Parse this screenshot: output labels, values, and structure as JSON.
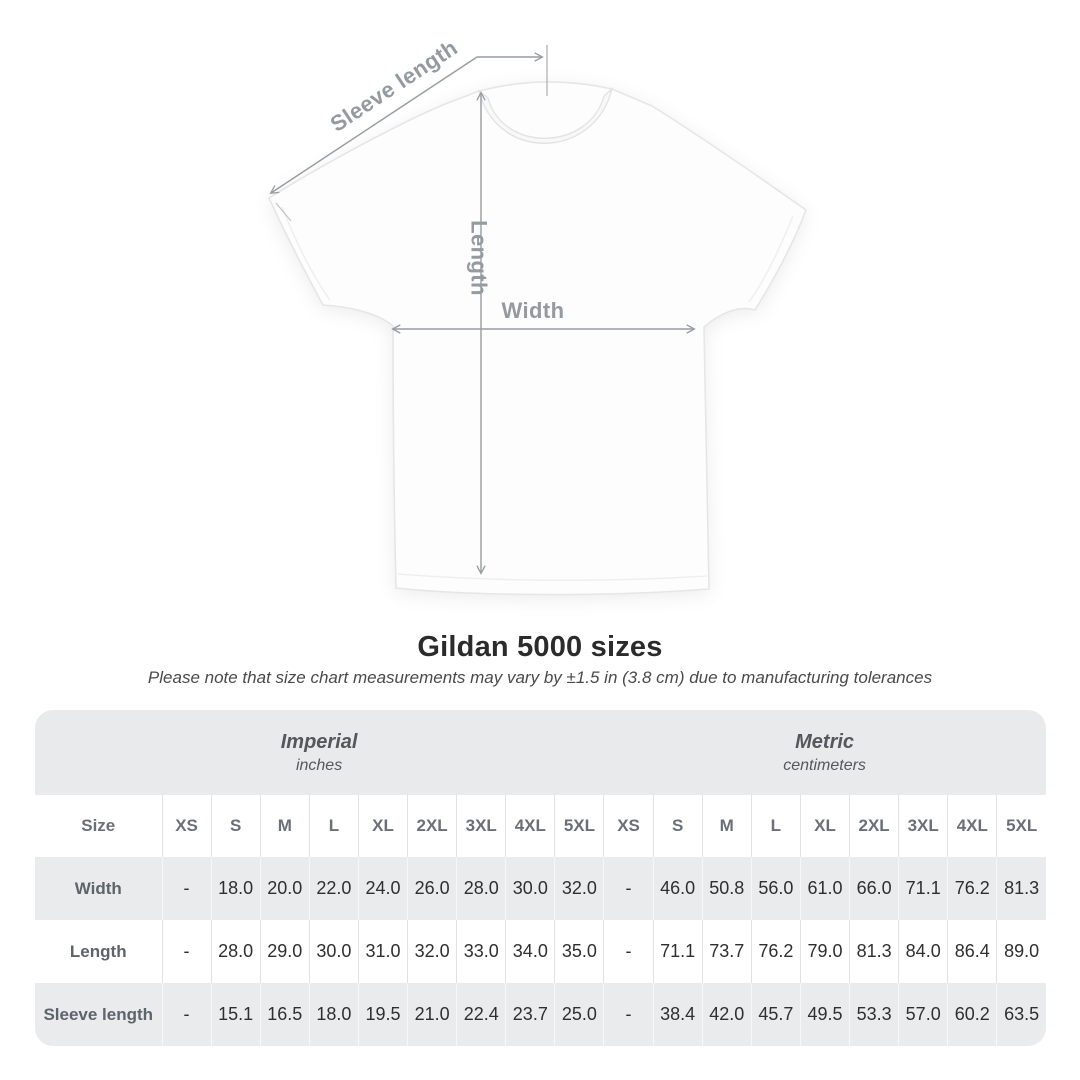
{
  "title": "Gildan 5000 sizes",
  "subtitle": "Please note that size chart measurements may vary by ±1.5 in (3.8 cm) due to manufacturing tolerances",
  "diagram": {
    "sleeve_length_label": "Sleeve length",
    "length_label": "Length",
    "width_label": "Width"
  },
  "colors": {
    "annotation_gray": "#979ca1",
    "band_background": "#e9eaeb",
    "alt_row_background": "#eaebec",
    "value_text": "#2f2f2f",
    "label_text": "#5d646b",
    "title_text": "#2b2b2b"
  },
  "chart_data": {
    "type": "table",
    "title": "Gildan 5000 sizes",
    "note": "Please note that size chart measurements may vary by ±1.5 in (3.8 cm) due to manufacturing tolerances",
    "groups": [
      {
        "label": "Imperial",
        "unit": "inches"
      },
      {
        "label": "Metric",
        "unit": "centimeters"
      }
    ],
    "size_column_header": "Size",
    "sizes": [
      "XS",
      "S",
      "M",
      "L",
      "XL",
      "2XL",
      "3XL",
      "4XL",
      "5XL"
    ],
    "rows": [
      {
        "label": "Width",
        "imperial": [
          "-",
          "18.0",
          "20.0",
          "22.0",
          "24.0",
          "26.0",
          "28.0",
          "30.0",
          "32.0"
        ],
        "metric": [
          "-",
          "46.0",
          "50.8",
          "56.0",
          "61.0",
          "66.0",
          "71.1",
          "76.2",
          "81.3"
        ]
      },
      {
        "label": "Length",
        "imperial": [
          "-",
          "28.0",
          "29.0",
          "30.0",
          "31.0",
          "32.0",
          "33.0",
          "34.0",
          "35.0"
        ],
        "metric": [
          "-",
          "71.1",
          "73.7",
          "76.2",
          "79.0",
          "81.3",
          "84.0",
          "86.4",
          "89.0"
        ]
      },
      {
        "label": "Sleeve length",
        "imperial": [
          "-",
          "15.1",
          "16.5",
          "18.0",
          "19.5",
          "21.0",
          "22.4",
          "23.7",
          "25.0"
        ],
        "metric": [
          "-",
          "38.4",
          "42.0",
          "45.7",
          "49.5",
          "53.3",
          "57.0",
          "60.2",
          "63.5"
        ]
      }
    ]
  }
}
